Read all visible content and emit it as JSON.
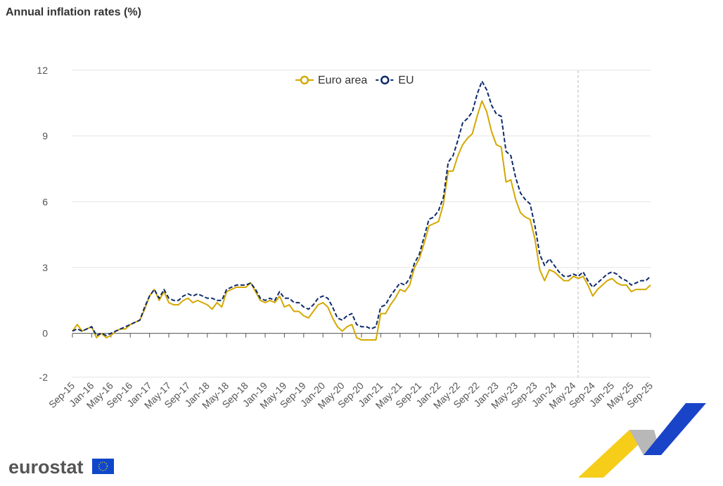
{
  "chart_data": {
    "type": "line",
    "title": "Annual inflation rates (%)",
    "logo": "eurostat",
    "categories": [
      "Sep-15",
      null,
      null,
      null,
      "Jan-16",
      null,
      null,
      null,
      "May-16",
      null,
      null,
      null,
      "Sep-16",
      null,
      null,
      null,
      "Jan-17",
      null,
      null,
      null,
      "May-17",
      null,
      null,
      null,
      "Sep-17",
      null,
      null,
      null,
      "Jan-18",
      null,
      null,
      null,
      "May-18",
      null,
      null,
      null,
      "Sep-18",
      null,
      null,
      null,
      "Jan-19",
      null,
      null,
      null,
      "May-19",
      null,
      null,
      null,
      "Sep-19",
      null,
      null,
      null,
      "Jan-20",
      null,
      null,
      null,
      "May-20",
      null,
      null,
      null,
      "Sep-20",
      null,
      null,
      null,
      "Jan-21",
      null,
      null,
      null,
      "May-21",
      null,
      null,
      null,
      "Sep-21",
      null,
      null,
      null,
      "Jan-22",
      null,
      null,
      null,
      "May-22",
      null,
      null,
      null,
      "Sep-22",
      null,
      null,
      null,
      "Jan-23",
      null,
      null,
      null,
      "May-23",
      null,
      null,
      null,
      "Sep-23",
      null,
      null,
      null,
      "Jan-24",
      null,
      null,
      null,
      "May-24",
      null,
      null,
      null,
      "Sep-24",
      null,
      null,
      null,
      "Jan-25",
      null,
      null,
      null,
      "May-25",
      null,
      null,
      null,
      "Sep-25"
    ],
    "series": [
      {
        "name": "Euro area",
        "color": "#d4a800",
        "dashed": false,
        "values": [
          0.1,
          0.4,
          0.1,
          0.2,
          0.3,
          -0.2,
          0.0,
          -0.2,
          -0.1,
          0.1,
          0.2,
          0.2,
          0.4,
          0.5,
          0.6,
          1.1,
          1.7,
          2.0,
          1.5,
          1.9,
          1.4,
          1.3,
          1.3,
          1.5,
          1.6,
          1.4,
          1.5,
          1.4,
          1.3,
          1.1,
          1.4,
          1.2,
          1.9,
          2.0,
          2.1,
          2.1,
          2.1,
          2.3,
          1.9,
          1.5,
          1.4,
          1.5,
          1.4,
          1.7,
          1.2,
          1.3,
          1.0,
          1.0,
          0.8,
          0.7,
          1.0,
          1.3,
          1.4,
          1.2,
          0.7,
          0.3,
          0.1,
          0.3,
          0.4,
          -0.2,
          -0.3,
          -0.3,
          -0.3,
          -0.3,
          0.9,
          0.9,
          1.3,
          1.6,
          2.0,
          1.9,
          2.2,
          3.0,
          3.4,
          4.1,
          4.9,
          5.0,
          5.1,
          5.9,
          7.4,
          7.4,
          8.1,
          8.6,
          8.9,
          9.1,
          9.9,
          10.6,
          10.1,
          9.2,
          8.6,
          8.5,
          6.9,
          7.0,
          6.1,
          5.5,
          5.3,
          5.2,
          4.3,
          2.9,
          2.4,
          2.9,
          2.8,
          2.6,
          2.4,
          2.4,
          2.6,
          2.5,
          2.6,
          2.2,
          1.7,
          2.0,
          2.2,
          2.4,
          2.5,
          2.3,
          2.2,
          2.2,
          1.9,
          2.0,
          2.0,
          2.0,
          2.2
        ]
      },
      {
        "name": "EU",
        "color": "#0e2a6b",
        "dashed": true,
        "values": [
          0.1,
          0.2,
          0.1,
          0.2,
          0.3,
          -0.1,
          0.0,
          -0.1,
          0.0,
          0.1,
          0.2,
          0.3,
          0.4,
          0.5,
          0.6,
          1.2,
          1.7,
          2.0,
          1.6,
          2.0,
          1.6,
          1.5,
          1.5,
          1.7,
          1.8,
          1.7,
          1.8,
          1.7,
          1.6,
          1.6,
          1.5,
          1.5,
          2.0,
          2.1,
          2.2,
          2.2,
          2.2,
          2.3,
          2.0,
          1.6,
          1.5,
          1.6,
          1.5,
          1.9,
          1.6,
          1.6,
          1.4,
          1.4,
          1.2,
          1.1,
          1.3,
          1.6,
          1.7,
          1.6,
          1.2,
          0.7,
          0.6,
          0.8,
          0.9,
          0.4,
          0.3,
          0.3,
          0.2,
          0.3,
          1.2,
          1.3,
          1.7,
          2.0,
          2.3,
          2.2,
          2.5,
          3.2,
          3.6,
          4.4,
          5.2,
          5.3,
          5.6,
          6.2,
          7.8,
          8.1,
          8.8,
          9.6,
          9.8,
          10.1,
          10.9,
          11.5,
          11.1,
          10.4,
          10.0,
          9.9,
          8.3,
          8.1,
          7.1,
          6.4,
          6.1,
          5.9,
          4.9,
          3.6,
          3.1,
          3.4,
          3.1,
          2.8,
          2.6,
          2.6,
          2.7,
          2.6,
          2.8,
          2.4,
          2.1,
          2.3,
          2.5,
          2.7,
          2.8,
          2.7,
          2.5,
          2.4,
          2.2,
          2.3,
          2.4,
          2.4,
          2.6
        ]
      }
    ],
    "ylim": [
      -2,
      12
    ],
    "yticks": [
      12,
      9,
      6,
      3,
      0,
      -2
    ],
    "grid": true
  }
}
